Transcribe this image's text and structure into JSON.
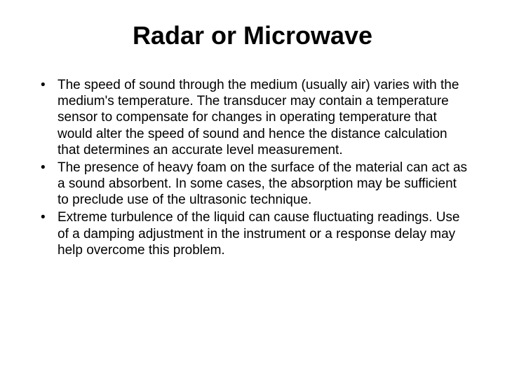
{
  "slide": {
    "title": "Radar or Microwave",
    "bullets": [
      {
        "text": "The speed of sound through the medium (usually air) varies with the medium's temperature. The transducer may contain a temperature sensor to compensate for changes in operating temperature that would alter the speed of sound and hence the distance calculation that determines an accurate level measurement."
      },
      {
        "text": "The presence of heavy foam on the surface of the material can act as a sound absorbent. In some cases, the absorption may be sufficient to preclude use of the ultrasonic technique."
      },
      {
        "text": "Extreme turbulence of the liquid can cause fluctuating readings. Use of a damping adjustment in the instrument or a response delay may help overcome this problem."
      }
    ],
    "styling": {
      "background_color": "#ffffff",
      "text_color": "#000000",
      "title_fontsize": 36,
      "title_fontweight": "bold",
      "body_fontsize": 19,
      "font_family": "Arial",
      "bullet_marker": "•"
    }
  }
}
